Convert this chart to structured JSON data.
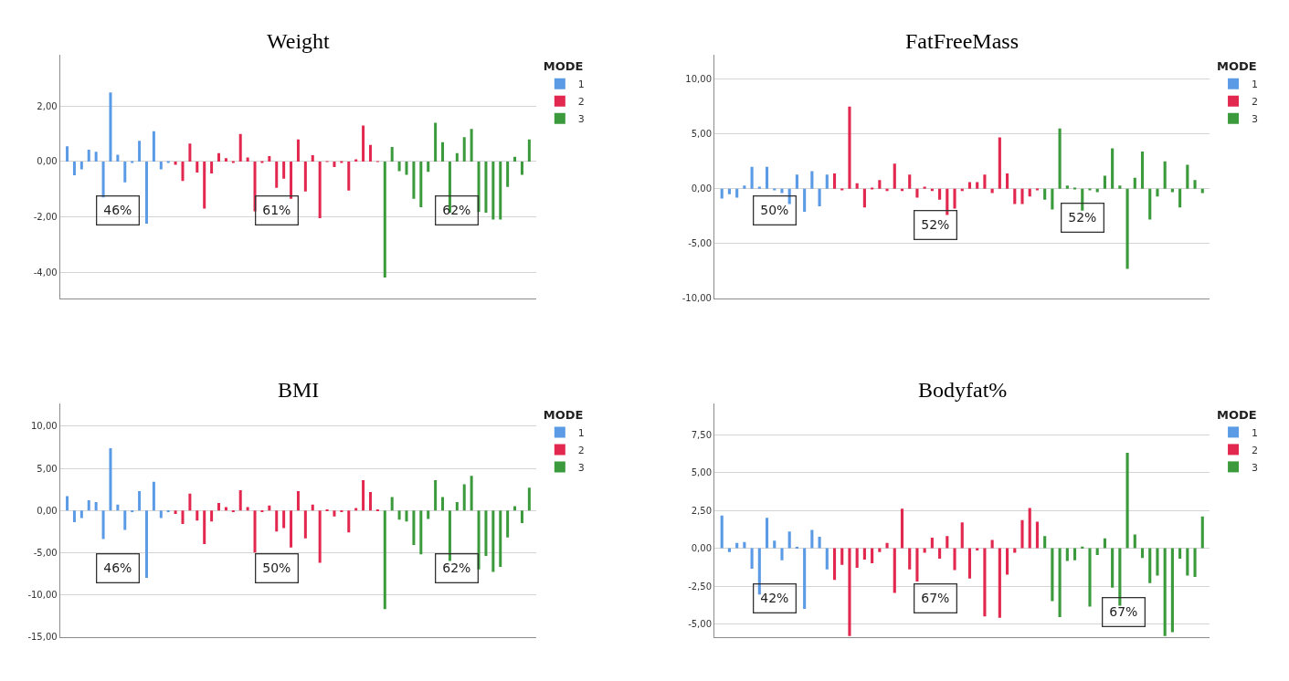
{
  "chart_data": [
    {
      "type": "bar",
      "title": "Weight",
      "legend": "top right",
      "legend_title": "MODE",
      "grid": "y",
      "ylim": [
        -4.95,
        3.85
      ],
      "yticks": [
        {
          "value": -4,
          "label": "-4,00"
        },
        {
          "value": -2,
          "label": "-2,00"
        },
        {
          "value": 0,
          "label": "0,00"
        },
        {
          "value": 2,
          "label": "2,00"
        }
      ],
      "categories": [
        null,
        null,
        null,
        null,
        null,
        null,
        null,
        null,
        null,
        null,
        null,
        null,
        null,
        null,
        null,
        null,
        null,
        null,
        null,
        null,
        null,
        null,
        null,
        null,
        null,
        null,
        null,
        null,
        null,
        null,
        null,
        null,
        null,
        null,
        null,
        null,
        null,
        null,
        null,
        null,
        null,
        null,
        null,
        null,
        null,
        null,
        null,
        null,
        null,
        null,
        null,
        null,
        null,
        null,
        null,
        null,
        null,
        null,
        null,
        null,
        null,
        null,
        null,
        null,
        null
      ],
      "series": [
        {
          "name": "1",
          "color": "#5b9be6",
          "values": [
            0.55,
            -0.5,
            -0.28,
            0.43,
            0.35,
            -1.3,
            2.5,
            0.25,
            -0.75,
            -0.03,
            0.75,
            -2.25,
            1.1,
            -0.28,
            -0.02,
            null,
            null,
            null,
            null,
            null,
            null,
            null,
            null,
            null,
            null,
            null,
            null,
            null,
            null,
            null,
            null,
            null,
            null,
            null,
            null,
            null,
            null,
            null,
            null,
            null,
            null,
            null,
            null,
            null,
            null,
            null,
            null,
            null,
            null,
            null,
            null,
            null,
            null,
            null,
            null,
            null,
            null,
            null,
            null,
            null,
            null,
            null,
            null,
            null,
            null
          ]
        },
        {
          "name": "2",
          "color": "#e2284f",
          "values": [
            null,
            null,
            null,
            null,
            null,
            null,
            null,
            null,
            null,
            null,
            null,
            null,
            null,
            null,
            null,
            -0.12,
            -0.7,
            0.65,
            -0.4,
            -1.7,
            -0.43,
            0.3,
            0.12,
            -0.05,
            1.0,
            0.15,
            -1.8,
            -0.03,
            0.2,
            -0.95,
            -0.62,
            -1.35,
            0.8,
            -1.08,
            0.23,
            -2.05,
            0.01,
            -0.2,
            -0.05,
            -1.05,
            0.08,
            1.3,
            0.6,
            0.01,
            null,
            null,
            null,
            null,
            null,
            null,
            null,
            null,
            null,
            null,
            null,
            null,
            null,
            null,
            null,
            null,
            null,
            null,
            null,
            null,
            null
          ]
        },
        {
          "name": "3",
          "color": "#3b9a3b",
          "values": [
            null,
            null,
            null,
            null,
            null,
            null,
            null,
            null,
            null,
            null,
            null,
            null,
            null,
            null,
            null,
            null,
            null,
            null,
            null,
            null,
            null,
            null,
            null,
            null,
            null,
            null,
            null,
            null,
            null,
            null,
            null,
            null,
            null,
            null,
            null,
            null,
            null,
            null,
            null,
            null,
            null,
            null,
            null,
            null,
            -4.2,
            0.53,
            -0.35,
            -0.48,
            -1.35,
            -1.65,
            -0.37,
            1.4,
            0.7,
            -1.85,
            0.3,
            0.88,
            1.18,
            -1.83,
            -1.85,
            -2.1,
            -2.1,
            -0.92,
            0.17,
            -0.48,
            0.8
          ]
        }
      ],
      "annotations": [
        "46%",
        "61%",
        "62%"
      ]
    },
    {
      "type": "bar",
      "title": "FatFreeMass",
      "legend": "top right",
      "legend_title": "MODE",
      "grid": "y",
      "ylim": [
        -10,
        12.2
      ],
      "yticks": [
        {
          "value": -10,
          "label": "-10,00"
        },
        {
          "value": -5,
          "label": "-5,00"
        },
        {
          "value": 0,
          "label": "0,00"
        },
        {
          "value": 5,
          "label": "5,00"
        },
        {
          "value": 10,
          "label": "10,00"
        }
      ],
      "categories": [
        null,
        null,
        null,
        null,
        null,
        null,
        null,
        null,
        null,
        null,
        null,
        null,
        null,
        null,
        null,
        null,
        null,
        null,
        null,
        null,
        null,
        null,
        null,
        null,
        null,
        null,
        null,
        null,
        null,
        null,
        null,
        null,
        null,
        null,
        null,
        null,
        null,
        null,
        null,
        null,
        null,
        null,
        null,
        null,
        null,
        null,
        null,
        null,
        null,
        null,
        null,
        null,
        null,
        null,
        null,
        null,
        null,
        null,
        null,
        null,
        null,
        null,
        null,
        null,
        null
      ],
      "series": [
        {
          "name": "1",
          "color": "#5b9be6",
          "values": [
            -0.9,
            -0.5,
            -0.8,
            0.3,
            2.0,
            0.2,
            2.0,
            -0.1,
            -0.4,
            -1.4,
            1.3,
            -2.1,
            1.6,
            -1.6,
            1.3,
            null,
            null,
            null,
            null,
            null,
            null,
            null,
            null,
            null,
            null,
            null,
            null,
            null,
            null,
            null,
            null,
            null,
            null,
            null,
            null,
            null,
            null,
            null,
            null,
            null,
            null,
            null,
            null,
            null,
            null,
            null,
            null,
            null,
            null,
            null,
            null,
            null,
            null,
            null,
            null,
            null,
            null,
            null,
            null,
            null,
            null,
            null,
            null,
            null,
            null
          ]
        },
        {
          "name": "2",
          "color": "#e2284f",
          "values": [
            null,
            null,
            null,
            null,
            null,
            null,
            null,
            null,
            null,
            null,
            null,
            null,
            null,
            null,
            null,
            1.4,
            -0.1,
            7.5,
            0.5,
            -1.7,
            0.1,
            0.8,
            -0.2,
            2.3,
            -0.2,
            1.3,
            -0.8,
            0.2,
            -0.2,
            -1.0,
            -2.4,
            -1.8,
            -0.2,
            0.6,
            0.6,
            1.3,
            -0.4,
            4.7,
            1.4,
            -1.4,
            -1.4,
            -0.7,
            -0.1,
            null,
            null,
            null,
            null,
            null,
            null,
            null,
            null,
            null,
            null,
            null,
            null,
            null,
            null,
            null,
            null,
            null,
            null,
            null,
            null,
            null,
            null
          ]
        },
        {
          "name": "3",
          "color": "#3b9a3b",
          "values": [
            null,
            null,
            null,
            null,
            null,
            null,
            null,
            null,
            null,
            null,
            null,
            null,
            null,
            null,
            null,
            null,
            null,
            null,
            null,
            null,
            null,
            null,
            null,
            null,
            null,
            null,
            null,
            null,
            null,
            null,
            null,
            null,
            null,
            null,
            null,
            null,
            null,
            null,
            null,
            null,
            null,
            null,
            null,
            -1.0,
            -1.9,
            5.5,
            0.3,
            0.1,
            -2.0,
            -0.1,
            -0.3,
            1.2,
            3.7,
            0.3,
            -7.3,
            1.0,
            3.4,
            -2.8,
            -0.7,
            2.5,
            -0.3,
            -1.7,
            2.2,
            0.8,
            -0.4
          ]
        }
      ],
      "annotations": [
        "50%",
        "52%",
        "52%"
      ]
    },
    {
      "type": "bar",
      "title": "BMI",
      "legend": "top right",
      "legend_title": "MODE",
      "grid": "y",
      "ylim": [
        -15,
        12.7
      ],
      "yticks": [
        {
          "value": -15,
          "label": "-15,00"
        },
        {
          "value": -10,
          "label": "-10,00"
        },
        {
          "value": -5,
          "label": "-5,00"
        },
        {
          "value": 0,
          "label": "0,00"
        },
        {
          "value": 5,
          "label": "5,00"
        },
        {
          "value": 10,
          "label": "10,00"
        }
      ],
      "categories": [
        null,
        null,
        null,
        null,
        null,
        null,
        null,
        null,
        null,
        null,
        null,
        null,
        null,
        null,
        null,
        null,
        null,
        null,
        null,
        null,
        null,
        null,
        null,
        null,
        null,
        null,
        null,
        null,
        null,
        null,
        null,
        null,
        null,
        null,
        null,
        null,
        null,
        null,
        null,
        null,
        null,
        null,
        null,
        null,
        null,
        null,
        null,
        null,
        null,
        null,
        null,
        null,
        null,
        null,
        null,
        null,
        null,
        null,
        null,
        null,
        null,
        null,
        null,
        null,
        null
      ],
      "series": [
        {
          "name": "1",
          "color": "#5b9be6",
          "values": [
            1.7,
            -1.4,
            -0.9,
            1.2,
            1.0,
            -3.4,
            7.4,
            0.7,
            -2.3,
            -0.1,
            2.3,
            -8.0,
            3.4,
            -0.9,
            -0.1,
            null,
            null,
            null,
            null,
            null,
            null,
            null,
            null,
            null,
            null,
            null,
            null,
            null,
            null,
            null,
            null,
            null,
            null,
            null,
            null,
            null,
            null,
            null,
            null,
            null,
            null,
            null,
            null,
            null,
            null,
            null,
            null,
            null,
            null,
            null,
            null,
            null,
            null,
            null,
            null,
            null,
            null,
            null,
            null,
            null,
            null,
            null,
            null,
            null,
            null
          ]
        },
        {
          "name": "2",
          "color": "#e2284f",
          "values": [
            null,
            null,
            null,
            null,
            null,
            null,
            null,
            null,
            null,
            null,
            null,
            null,
            null,
            null,
            null,
            -0.4,
            -1.6,
            2.0,
            -1.2,
            -4.0,
            -1.3,
            0.9,
            0.4,
            -0.2,
            2.4,
            0.4,
            -5.0,
            -0.1,
            0.6,
            -2.5,
            -2.1,
            -4.4,
            2.3,
            -3.3,
            0.7,
            -6.2,
            0.1,
            -0.7,
            -0.2,
            -2.6,
            0.3,
            3.6,
            2.2,
            0.1,
            null,
            null,
            null,
            null,
            null,
            null,
            null,
            null,
            null,
            null,
            null,
            null,
            null,
            null,
            null,
            null,
            null,
            null,
            null,
            null,
            null
          ]
        },
        {
          "name": "3",
          "color": "#3b9a3b",
          "values": [
            null,
            null,
            null,
            null,
            null,
            null,
            null,
            null,
            null,
            null,
            null,
            null,
            null,
            null,
            null,
            null,
            null,
            null,
            null,
            null,
            null,
            null,
            null,
            null,
            null,
            null,
            null,
            null,
            null,
            null,
            null,
            null,
            null,
            null,
            null,
            null,
            null,
            null,
            null,
            null,
            null,
            null,
            null,
            null,
            -11.7,
            1.6,
            -1.1,
            -1.3,
            -4.1,
            -5.2,
            -1.0,
            3.6,
            1.6,
            -6.0,
            1.0,
            3.1,
            4.1,
            -7.0,
            -5.4,
            -7.3,
            -6.7,
            -3.2,
            0.5,
            -1.5,
            2.7
          ]
        }
      ],
      "annotations": [
        "46%",
        "50%",
        "62%"
      ]
    },
    {
      "type": "bar",
      "title": "Bodyfat%",
      "legend": "top right",
      "legend_title": "MODE",
      "grid": "y",
      "ylim": [
        -5.85,
        9.55
      ],
      "yticks": [
        {
          "value": -5,
          "label": "-5,00"
        },
        {
          "value": -2.5,
          "label": "-2,50"
        },
        {
          "value": 0,
          "label": "0,00"
        },
        {
          "value": 2.5,
          "label": "2,50"
        },
        {
          "value": 5,
          "label": "5,00"
        },
        {
          "value": 7.5,
          "label": "7,50"
        }
      ],
      "categories": [
        null,
        null,
        null,
        null,
        null,
        null,
        null,
        null,
        null,
        null,
        null,
        null,
        null,
        null,
        null,
        null,
        null,
        null,
        null,
        null,
        null,
        null,
        null,
        null,
        null,
        null,
        null,
        null,
        null,
        null,
        null,
        null,
        null,
        null,
        null,
        null,
        null,
        null,
        null,
        null,
        null,
        null,
        null,
        null,
        null,
        null,
        null,
        null,
        null,
        null,
        null,
        null,
        null,
        null,
        null,
        null,
        null,
        null,
        null,
        null,
        null,
        null,
        null,
        null,
        null
      ],
      "series": [
        {
          "name": "1",
          "color": "#5b9be6",
          "values": [
            2.15,
            -0.25,
            0.35,
            0.4,
            -1.35,
            -3.05,
            2.0,
            0.5,
            -0.8,
            1.1,
            0.05,
            -4.0,
            1.2,
            0.75,
            -1.4,
            null,
            null,
            null,
            null,
            null,
            null,
            null,
            null,
            null,
            null,
            null,
            null,
            null,
            null,
            null,
            null,
            null,
            null,
            null,
            null,
            null,
            null,
            null,
            null,
            null,
            null,
            null,
            null,
            null,
            null,
            null,
            null,
            null,
            null,
            null,
            null,
            null,
            null,
            null,
            null,
            null,
            null,
            null,
            null,
            null,
            null,
            null,
            null,
            null,
            null
          ]
        },
        {
          "name": "2",
          "color": "#e2284f",
          "values": [
            null,
            null,
            null,
            null,
            null,
            null,
            null,
            null,
            null,
            null,
            null,
            null,
            null,
            null,
            null,
            -2.1,
            -1.1,
            -5.8,
            -1.3,
            -0.75,
            -1.0,
            -0.25,
            0.35,
            -2.95,
            2.6,
            -1.4,
            -2.2,
            -0.3,
            0.7,
            -0.7,
            0.8,
            -1.45,
            1.7,
            -2.0,
            -0.15,
            -4.5,
            0.55,
            -4.6,
            -1.75,
            -0.3,
            1.85,
            2.65,
            1.75,
            null,
            null,
            null,
            null,
            null,
            null,
            null,
            null,
            null,
            null,
            null,
            null,
            null,
            null,
            null,
            null,
            null,
            null,
            null,
            null,
            null,
            null
          ]
        },
        {
          "name": "3",
          "color": "#3b9a3b",
          "values": [
            null,
            null,
            null,
            null,
            null,
            null,
            null,
            null,
            null,
            null,
            null,
            null,
            null,
            null,
            null,
            null,
            null,
            null,
            null,
            null,
            null,
            null,
            null,
            null,
            null,
            null,
            null,
            null,
            null,
            null,
            null,
            null,
            null,
            null,
            null,
            null,
            null,
            null,
            null,
            null,
            null,
            null,
            null,
            0.8,
            -3.5,
            -4.55,
            -0.85,
            -0.8,
            0.1,
            -3.85,
            -0.45,
            0.65,
            -2.6,
            -3.8,
            6.3,
            0.9,
            -0.65,
            -2.3,
            -1.8,
            -5.8,
            -5.55,
            -0.7,
            -1.8,
            -1.9,
            2.1
          ]
        }
      ],
      "annotations": [
        "42%",
        "67%",
        "67%"
      ]
    }
  ]
}
